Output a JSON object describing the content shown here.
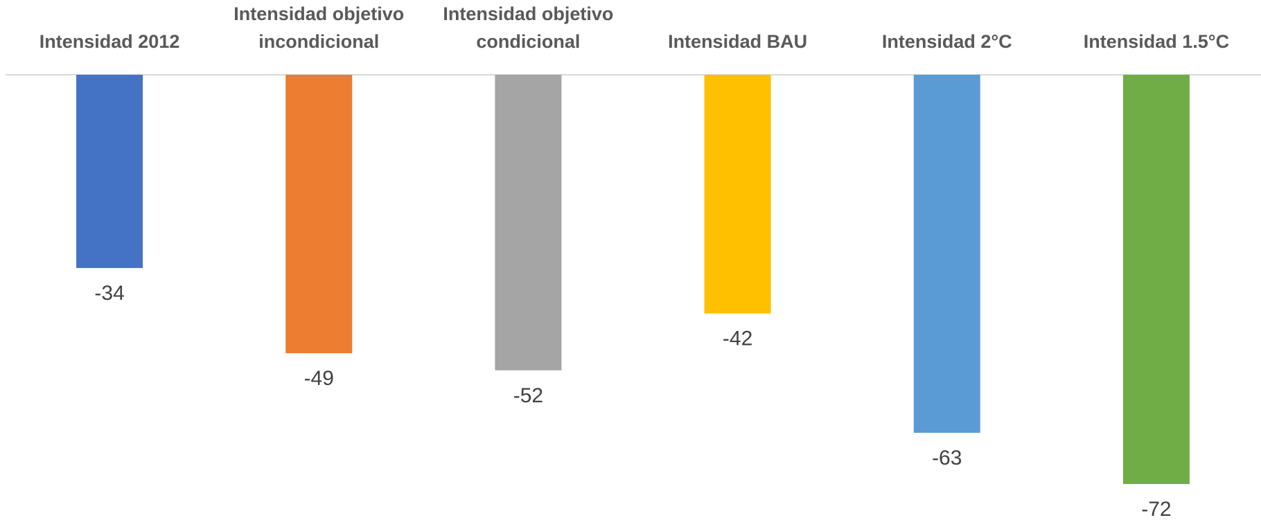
{
  "chart_data": {
    "type": "bar",
    "categories": [
      "Intensidad 2012",
      "Intensidad objetivo incondicional",
      "Intensidad objetivo condicional",
      "Intensidad BAU",
      "Intensidad 2°C",
      "Intensidad 1.5°C"
    ],
    "values": [
      -34,
      -49,
      -52,
      -42,
      -63,
      -72
    ],
    "colors": [
      "#4472c4",
      "#ed7d31",
      "#a5a5a5",
      "#ffc000",
      "#5b9bd5",
      "#70ad47"
    ]
  }
}
